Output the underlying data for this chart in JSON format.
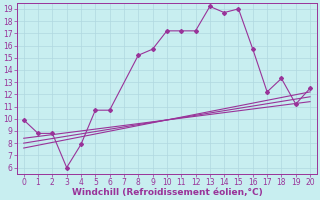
{
  "title": "",
  "xlabel": "Windchill (Refroidissement éolien,°C)",
  "ylabel": "",
  "xlim": [
    -0.5,
    20.5
  ],
  "ylim": [
    5.5,
    19.5
  ],
  "bg_color": "#c8eef0",
  "grid_color": "#b0d8e0",
  "line_color": "#993399",
  "xticks": [
    0,
    1,
    2,
    3,
    4,
    5,
    6,
    7,
    8,
    9,
    10,
    11,
    12,
    13,
    14,
    15,
    16,
    17,
    18,
    19,
    20
  ],
  "yticks": [
    6,
    7,
    8,
    9,
    10,
    11,
    12,
    13,
    14,
    15,
    16,
    17,
    18,
    19
  ],
  "jagged_x": [
    0,
    1,
    2,
    3,
    4,
    5,
    6,
    8,
    9,
    10,
    11,
    12,
    13,
    14,
    15,
    16,
    17,
    18,
    19,
    20
  ],
  "jagged_y": [
    9.9,
    8.8,
    8.8,
    6.0,
    7.9,
    10.7,
    10.7,
    15.2,
    15.7,
    17.2,
    17.2,
    17.2,
    19.2,
    18.7,
    19.0,
    15.7,
    12.2,
    13.3,
    11.2,
    12.5
  ],
  "line1_x": [
    0,
    20
  ],
  "line1_y": [
    7.6,
    12.2
  ],
  "line2_x": [
    0,
    20
  ],
  "line2_y": [
    8.0,
    11.8
  ],
  "line3_x": [
    0,
    20
  ],
  "line3_y": [
    8.4,
    11.4
  ],
  "font_size_label": 6.5,
  "font_size_tick": 5.5,
  "marker": "D",
  "marker_size": 2.0,
  "line_width": 0.8
}
